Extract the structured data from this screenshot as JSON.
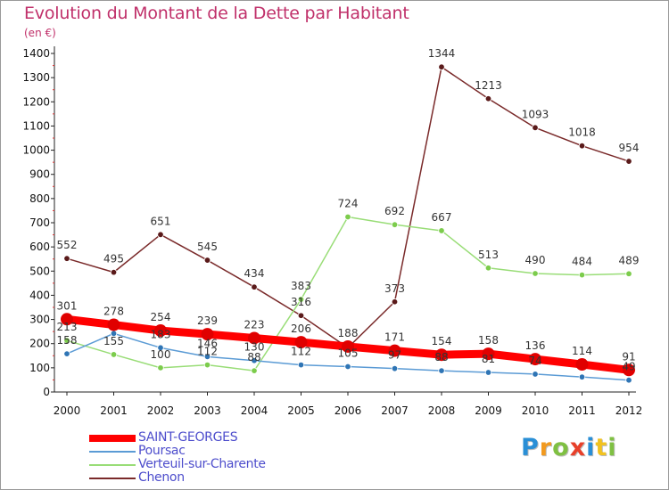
{
  "title": "Evolution du Montant de la Dette par Habitant",
  "subtitle": "(en €)",
  "logo": {
    "letters": [
      "P",
      "r",
      "o",
      "x",
      "i",
      "t",
      "i"
    ],
    "colors": [
      "#2a8fd6",
      "#f29a1f",
      "#7fc042",
      "#e8402a",
      "#2a8fd6",
      "#f2c21f",
      "#7fc042"
    ]
  },
  "chart_data": {
    "type": "line",
    "title": "Evolution du Montant de la Dette par Habitant",
    "ylabel": "(en €)",
    "xlabel": "",
    "x": [
      "2000",
      "2001",
      "2002",
      "2003",
      "2004",
      "2005",
      "2006",
      "2007",
      "2008",
      "2009",
      "2010",
      "2011",
      "2012"
    ],
    "ylim": [
      0,
      1400
    ],
    "yticks": [
      0,
      100,
      200,
      300,
      400,
      500,
      600,
      700,
      800,
      900,
      1000,
      1100,
      1200,
      1300,
      1400
    ],
    "grid": false,
    "legend_position": "bottom-left",
    "series": [
      {
        "name": "SAINT-GEORGES",
        "color": "#ff0000",
        "marker_color": "#e00000",
        "values": [
          301,
          278,
          254,
          239,
          223,
          206,
          188,
          171,
          154,
          158,
          136,
          114,
          91
        ],
        "labels": [
          "301",
          "278",
          "254",
          "239",
          "223",
          "206",
          "188",
          "171",
          "154",
          "158",
          "136",
          "114",
          "91"
        ]
      },
      {
        "name": "Poursac",
        "color": "#5b9bd5",
        "marker_color": "#2f75b5",
        "values": [
          158,
          242,
          183,
          146,
          130,
          112,
          105,
          97,
          88,
          81,
          74,
          62,
          49
        ],
        "labels": [
          "158",
          "",
          "183",
          "146",
          "130",
          "112",
          "105",
          "97",
          "88",
          "81",
          "74",
          "",
          "49"
        ]
      },
      {
        "name": "Verteuil-sur-Charente",
        "color": "#99dd77",
        "marker_color": "#7ccc4c",
        "values": [
          213,
          155,
          100,
          112,
          88,
          383,
          724,
          692,
          667,
          513,
          490,
          484,
          489
        ],
        "labels": [
          "213",
          "155",
          "100",
          "112",
          "88",
          "383",
          "724",
          "692",
          "667",
          "513",
          "490",
          "484",
          "489"
        ]
      },
      {
        "name": "Chenon",
        "color": "#7a2a2a",
        "marker_color": "#5a1a1a",
        "values": [
          552,
          495,
          651,
          545,
          434,
          316,
          183,
          373,
          1344,
          1213,
          1093,
          1018,
          954
        ],
        "labels": [
          "552",
          "495",
          "651",
          "545",
          "434",
          "316",
          "",
          "373",
          "1344",
          "1213",
          "1093",
          "1018",
          "954"
        ]
      }
    ]
  }
}
